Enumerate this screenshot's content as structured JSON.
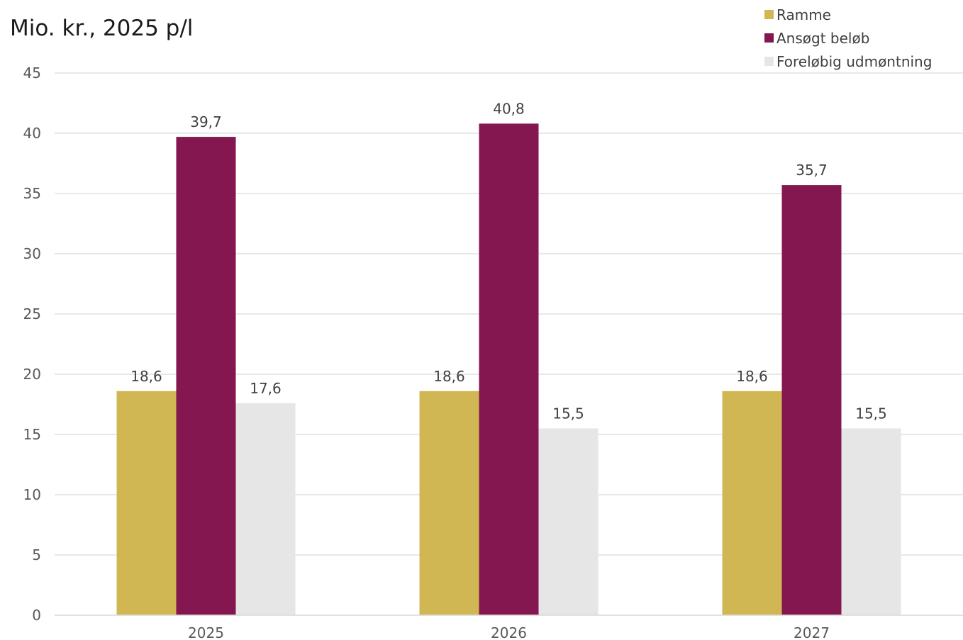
{
  "chart_data": {
    "type": "bar",
    "title": "",
    "unit_label": "Mio. kr., 2025 p/l",
    "xlabel": "",
    "ylabel": "",
    "categories": [
      "2025",
      "2026",
      "2027"
    ],
    "ylim": [
      0,
      45
    ],
    "yticks": [
      0,
      5,
      10,
      15,
      20,
      25,
      30,
      35,
      40,
      45
    ],
    "grid": true,
    "legend_position": "top-right",
    "series": [
      {
        "name": "Ramme",
        "color": "#d1b754",
        "values": [
          18.6,
          18.6,
          18.6
        ],
        "labels": [
          "18,6",
          "18,6",
          "18,6"
        ]
      },
      {
        "name": "Ansøgt beløb",
        "color": "#84174f",
        "values": [
          39.7,
          40.8,
          35.7
        ],
        "labels": [
          "39,7",
          "40,8",
          "35,7"
        ]
      },
      {
        "name": "Foreløbig udmøntning",
        "color": "#e6e6e6",
        "values": [
          17.6,
          15.5,
          15.5
        ],
        "labels": [
          "17,6",
          "15,5",
          "15,5"
        ]
      }
    ]
  }
}
